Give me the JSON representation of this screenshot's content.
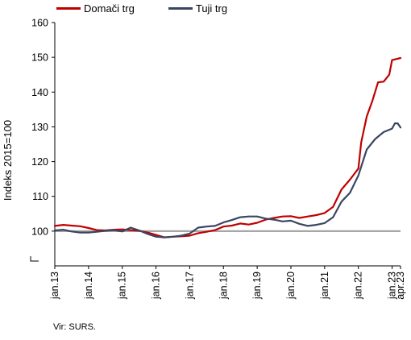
{
  "colors": {
    "domestic": "#c00000",
    "foreign": "#3a4660",
    "baseline": "#a6a6a6",
    "axis": "#000000"
  },
  "source": "Vir: SURS.",
  "chart_data": {
    "type": "line",
    "title": "",
    "xlabel": "",
    "ylabel": "Indeks 2015=100",
    "ylim": [
      90,
      160
    ],
    "y_axis_break": true,
    "yticks": [
      100,
      110,
      120,
      130,
      140,
      150,
      160
    ],
    "yticks_labels": [
      "100",
      "110",
      "120",
      "130",
      "140",
      "150",
      "160"
    ],
    "baseline": 100,
    "grid": false,
    "legend_position": "top-left",
    "x_start": "2013-01",
    "x_end": "2023-04",
    "xticks": [
      "2013-01",
      "2014-01",
      "2015-01",
      "2016-01",
      "2017-01",
      "2018-01",
      "2019-01",
      "2020-01",
      "2021-01",
      "2022-01",
      "2023-01",
      "2023-04"
    ],
    "xtick_labels": [
      "jan.13",
      "jan.14",
      "jan.15",
      "jan.16",
      "jan.17",
      "jan.18",
      "jan.19",
      "jan.20",
      "jan.21",
      "jan.22",
      "jan.23",
      "apr.23"
    ],
    "series": [
      {
        "name": "Domači trg",
        "color": "#c00000",
        "points": [
          [
            "2013-01",
            101.5
          ],
          [
            "2013-04",
            101.8
          ],
          [
            "2013-07",
            101.6
          ],
          [
            "2013-10",
            101.4
          ],
          [
            "2014-01",
            100.9
          ],
          [
            "2014-04",
            100.3
          ],
          [
            "2014-07",
            100.2
          ],
          [
            "2014-10",
            100.4
          ],
          [
            "2015-01",
            100.5
          ],
          [
            "2015-04",
            100.3
          ],
          [
            "2015-07",
            100.1
          ],
          [
            "2015-10",
            99.6
          ],
          [
            "2016-01",
            98.9
          ],
          [
            "2016-04",
            98.2
          ],
          [
            "2016-07",
            98.4
          ],
          [
            "2016-10",
            98.5
          ],
          [
            "2017-01",
            98.7
          ],
          [
            "2017-04",
            99.4
          ],
          [
            "2017-07",
            99.8
          ],
          [
            "2017-10",
            100.3
          ],
          [
            "2018-01",
            101.3
          ],
          [
            "2018-04",
            101.6
          ],
          [
            "2018-07",
            102.2
          ],
          [
            "2018-10",
            101.9
          ],
          [
            "2019-01",
            102.4
          ],
          [
            "2019-04",
            103.3
          ],
          [
            "2019-07",
            103.8
          ],
          [
            "2019-10",
            104.2
          ],
          [
            "2020-01",
            104.3
          ],
          [
            "2020-04",
            103.8
          ],
          [
            "2020-07",
            104.2
          ],
          [
            "2020-10",
            104.6
          ],
          [
            "2021-01",
            105.2
          ],
          [
            "2021-04",
            107.0
          ],
          [
            "2021-07",
            112.0
          ],
          [
            "2021-10",
            114.8
          ],
          [
            "2022-01",
            118.0
          ],
          [
            "2022-02",
            125.5
          ],
          [
            "2022-04",
            133.0
          ],
          [
            "2022-06",
            137.5
          ],
          [
            "2022-08",
            142.8
          ],
          [
            "2022-10",
            143.0
          ],
          [
            "2022-12",
            145.0
          ],
          [
            "2023-01",
            149.2
          ],
          [
            "2023-04",
            149.8
          ]
        ]
      },
      {
        "name": "Tuji trg",
        "color": "#3a4660",
        "points": [
          [
            "2013-01",
            100.2
          ],
          [
            "2013-04",
            100.4
          ],
          [
            "2013-07",
            99.9
          ],
          [
            "2013-10",
            99.6
          ],
          [
            "2014-01",
            99.6
          ],
          [
            "2014-04",
            99.8
          ],
          [
            "2014-07",
            100.1
          ],
          [
            "2014-10",
            100.3
          ],
          [
            "2015-01",
            99.9
          ],
          [
            "2015-04",
            101.0
          ],
          [
            "2015-07",
            100.2
          ],
          [
            "2015-10",
            99.2
          ],
          [
            "2016-01",
            98.4
          ],
          [
            "2016-04",
            98.2
          ],
          [
            "2016-07",
            98.4
          ],
          [
            "2016-10",
            98.7
          ],
          [
            "2017-01",
            99.3
          ],
          [
            "2017-04",
            101.0
          ],
          [
            "2017-07",
            101.3
          ],
          [
            "2017-10",
            101.5
          ],
          [
            "2018-01",
            102.5
          ],
          [
            "2018-04",
            103.2
          ],
          [
            "2018-07",
            104.0
          ],
          [
            "2018-10",
            104.2
          ],
          [
            "2019-01",
            104.2
          ],
          [
            "2019-04",
            103.6
          ],
          [
            "2019-07",
            103.3
          ],
          [
            "2019-10",
            102.8
          ],
          [
            "2020-01",
            103.0
          ],
          [
            "2020-04",
            102.1
          ],
          [
            "2020-07",
            101.5
          ],
          [
            "2020-10",
            101.8
          ],
          [
            "2021-01",
            102.3
          ],
          [
            "2021-04",
            104.0
          ],
          [
            "2021-07",
            108.5
          ],
          [
            "2021-10",
            111.0
          ],
          [
            "2022-01",
            116.0
          ],
          [
            "2022-04",
            123.5
          ],
          [
            "2022-07",
            126.5
          ],
          [
            "2022-10",
            128.5
          ],
          [
            "2023-01",
            129.5
          ],
          [
            "2023-02",
            131.0
          ],
          [
            "2023-03",
            131.0
          ],
          [
            "2023-04",
            129.8
          ]
        ]
      }
    ]
  }
}
